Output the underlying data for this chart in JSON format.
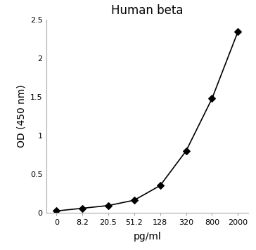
{
  "title": "Human beta",
  "xlabel": "pg/ml",
  "ylabel": "OD (450 nm)",
  "x_labels": [
    "0",
    "8.2",
    "20.5",
    "51.2",
    "128",
    "320",
    "800",
    "2000"
  ],
  "x_values": [
    0,
    1,
    2,
    3,
    4,
    5,
    6,
    7
  ],
  "y_values": [
    0.02,
    0.055,
    0.09,
    0.16,
    0.35,
    0.8,
    1.48,
    2.35
  ],
  "ylim": [
    0,
    2.5
  ],
  "yticks": [
    0,
    0.5,
    1.0,
    1.5,
    2.0,
    2.5
  ],
  "line_color": "#000000",
  "marker": "D",
  "marker_size": 5,
  "marker_facecolor": "#000000",
  "line_width": 1.2,
  "title_fontsize": 12,
  "label_fontsize": 10,
  "tick_fontsize": 8,
  "spine_color": "#aaaaaa",
  "background_color": "#ffffff"
}
